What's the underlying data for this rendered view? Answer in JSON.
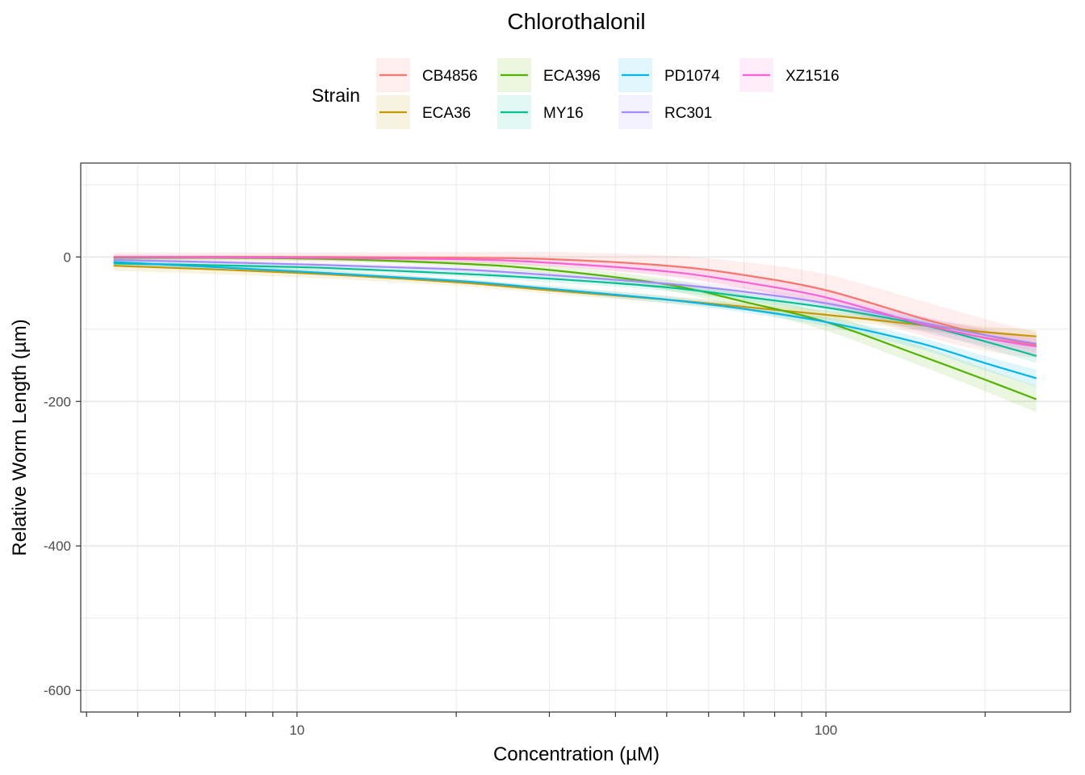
{
  "chart_data": {
    "type": "line",
    "title": "Chlorothalonil",
    "xlabel": "Concentration (µM)",
    "ylabel": "Relative Worm Length (µm)",
    "x_scale": "log10",
    "xlim": [
      3.9,
      290
    ],
    "ylim": [
      -630,
      130
    ],
    "x_ticks": [
      10,
      100
    ],
    "x_tick_labels": [
      "10",
      "100"
    ],
    "y_ticks": [
      0,
      -200,
      -400,
      -600
    ],
    "y_tick_labels": [
      "0",
      "-200",
      "-400",
      "-600"
    ],
    "grid": true,
    "confidence_bands": true,
    "legend": {
      "title": "Strain",
      "placement": "top",
      "columns": [
        [
          "CB4856",
          "ECA36"
        ],
        [
          "ECA396",
          "MY16"
        ],
        [
          "PD1074",
          "RC301"
        ],
        [
          "XZ1516"
        ]
      ]
    },
    "x": [
      4.5,
      10,
      20,
      30,
      50,
      70,
      100,
      150,
      200,
      250
    ],
    "series": [
      {
        "name": "CB4856",
        "color": "#F8766D",
        "values": [
          0,
          0,
          -1,
          -3,
          -12,
          -25,
          -46,
          -84,
          -108,
          -122
        ],
        "band": [
          6,
          6,
          8,
          10,
          14,
          18,
          22,
          24,
          22,
          18
        ]
      },
      {
        "name": "ECA36",
        "color": "#C49A00",
        "values": [
          -12,
          -22,
          -35,
          -46,
          -59,
          -69,
          -80,
          -94,
          -104,
          -110
        ],
        "band": [
          7,
          6,
          5,
          5,
          5,
          5,
          6,
          7,
          8,
          9
        ]
      },
      {
        "name": "ECA396",
        "color": "#53B400",
        "values": [
          -1,
          -2,
          -9,
          -18,
          -38,
          -62,
          -90,
          -136,
          -170,
          -197
        ],
        "band": [
          3,
          3,
          4,
          6,
          8,
          10,
          12,
          14,
          16,
          18
        ]
      },
      {
        "name": "MY16",
        "color": "#00C094",
        "values": [
          -9,
          -14,
          -23,
          -30,
          -42,
          -55,
          -70,
          -93,
          -117,
          -137
        ],
        "band": [
          4,
          4,
          4,
          5,
          5,
          6,
          7,
          8,
          9,
          10
        ]
      },
      {
        "name": "PD1074",
        "color": "#00B6EB",
        "values": [
          -7,
          -20,
          -33,
          -44,
          -59,
          -72,
          -90,
          -119,
          -147,
          -168
        ],
        "band": [
          3,
          3,
          3,
          4,
          5,
          5,
          6,
          8,
          10,
          12
        ]
      },
      {
        "name": "RC301",
        "color": "#A58AFF",
        "values": [
          -4,
          -10,
          -17,
          -25,
          -37,
          -48,
          -64,
          -90,
          -108,
          -120
        ],
        "band": [
          3,
          3,
          4,
          4,
          5,
          6,
          7,
          8,
          9,
          10
        ]
      },
      {
        "name": "XZ1516",
        "color": "#FB61D7",
        "values": [
          0,
          -1,
          -3,
          -8,
          -20,
          -35,
          -56,
          -92,
          -112,
          -124
        ],
        "band": [
          3,
          3,
          4,
          5,
          7,
          9,
          10,
          11,
          11,
          11
        ]
      }
    ]
  }
}
